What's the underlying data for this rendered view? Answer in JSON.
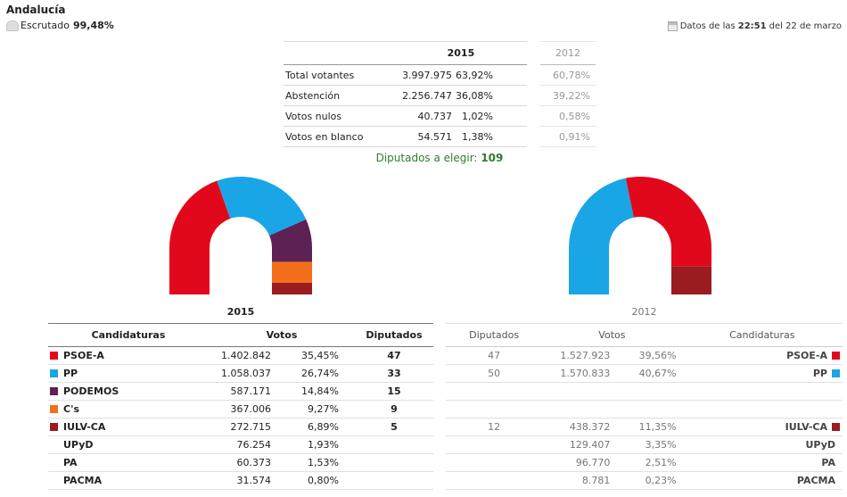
{
  "header": {
    "region": "Andalucía",
    "scrutiny_label": "Escrutado",
    "scrutiny_value": "99,48%",
    "datos_prefix": "Datos de las",
    "datos_time": "22:51",
    "datos_suffix": "del 22 de marzo"
  },
  "participation": {
    "year_2015": "2015",
    "year_2012": "2012",
    "rows": [
      {
        "label": "Total votantes",
        "votes": "3.997.975",
        "pct": "63,92%",
        "pct_2012": "60,78%"
      },
      {
        "label": "Abstención",
        "votes": "2.256.747",
        "pct": "36,08%",
        "pct_2012": "39,22%"
      },
      {
        "label": "Votos nulos",
        "votes": "40.737",
        "pct": "1,02%",
        "pct_2012": "0,58%"
      },
      {
        "label": "Votos en blanco",
        "votes": "54.571",
        "pct": "1,38%",
        "pct_2012": "0,91%"
      }
    ]
  },
  "diputados": {
    "label": "Diputados a elegir:",
    "value": "109"
  },
  "chart_data": [
    {
      "type": "pie",
      "shape": "hemicycle",
      "year": "2015",
      "total_seats": 109,
      "slices": [
        {
          "party": "PSOE-A",
          "seats": 47,
          "color": "#e2081c"
        },
        {
          "party": "PP",
          "seats": 33,
          "color": "#1aa5e6"
        },
        {
          "party": "PODEMOS",
          "seats": 15,
          "color": "#5e2154"
        },
        {
          "party": "C's",
          "seats": 9,
          "color": "#f36f1c"
        },
        {
          "party": "IULV-CA",
          "seats": 5,
          "color": "#9a1c21"
        }
      ]
    },
    {
      "type": "pie",
      "shape": "hemicycle",
      "year": "2012",
      "total_seats": 109,
      "slices": [
        {
          "party": "PP",
          "seats": 50,
          "color": "#1aa5e6"
        },
        {
          "party": "PSOE-A",
          "seats": 47,
          "color": "#e2081c"
        },
        {
          "party": "IULV-CA",
          "seats": 12,
          "color": "#9a1c21"
        }
      ]
    }
  ],
  "results": {
    "year_2015": "2015",
    "year_2012": "2012",
    "headers_2015": {
      "party": "Candidaturas",
      "votes": "Votos",
      "seats": "Diputados"
    },
    "headers_2012": {
      "seats": "Diputados",
      "votes": "Votos",
      "party": "Candidaturas"
    },
    "rows": [
      {
        "party": "PSOE-A",
        "color": "#e2081c",
        "votes": "1.402.842",
        "pct": "35,45%",
        "seats": "47",
        "seats_2012": "47",
        "votes_2012": "1.527.923",
        "pct_2012": "39,56%",
        "party_2012": "PSOE-A",
        "color_2012": "#e2081c"
      },
      {
        "party": "PP",
        "color": "#1aa5e6",
        "votes": "1.058.037",
        "pct": "26,74%",
        "seats": "33",
        "seats_2012": "50",
        "votes_2012": "1.570.833",
        "pct_2012": "40,67%",
        "party_2012": "PP",
        "color_2012": "#1aa5e6"
      },
      {
        "party": "PODEMOS",
        "color": "#5e2154",
        "votes": "587.171",
        "pct": "14,84%",
        "seats": "15",
        "seats_2012": "",
        "votes_2012": "",
        "pct_2012": "",
        "party_2012": "",
        "color_2012": ""
      },
      {
        "party": "C's",
        "color": "#f36f1c",
        "votes": "367.006",
        "pct": "9,27%",
        "seats": "9",
        "seats_2012": "",
        "votes_2012": "",
        "pct_2012": "",
        "party_2012": "",
        "color_2012": ""
      },
      {
        "party": "IULV-CA",
        "color": "#9a1c21",
        "votes": "272.715",
        "pct": "6,89%",
        "seats": "5",
        "seats_2012": "12",
        "votes_2012": "438.372",
        "pct_2012": "11,35%",
        "party_2012": "IULV-CA",
        "color_2012": "#9a1c21"
      },
      {
        "party": "UPyD",
        "color": "",
        "votes": "76.254",
        "pct": "1,93%",
        "seats": "",
        "seats_2012": "",
        "votes_2012": "129.407",
        "pct_2012": "3,35%",
        "party_2012": "UPyD",
        "color_2012": ""
      },
      {
        "party": "PA",
        "color": "",
        "votes": "60.373",
        "pct": "1,53%",
        "seats": "",
        "seats_2012": "",
        "votes_2012": "96.770",
        "pct_2012": "2,51%",
        "party_2012": "PA",
        "color_2012": ""
      },
      {
        "party": "PACMA",
        "color": "",
        "votes": "31.574",
        "pct": "0,80%",
        "seats": "",
        "seats_2012": "",
        "votes_2012": "8.781",
        "pct_2012": "0,23%",
        "party_2012": "PACMA",
        "color_2012": ""
      }
    ]
  }
}
